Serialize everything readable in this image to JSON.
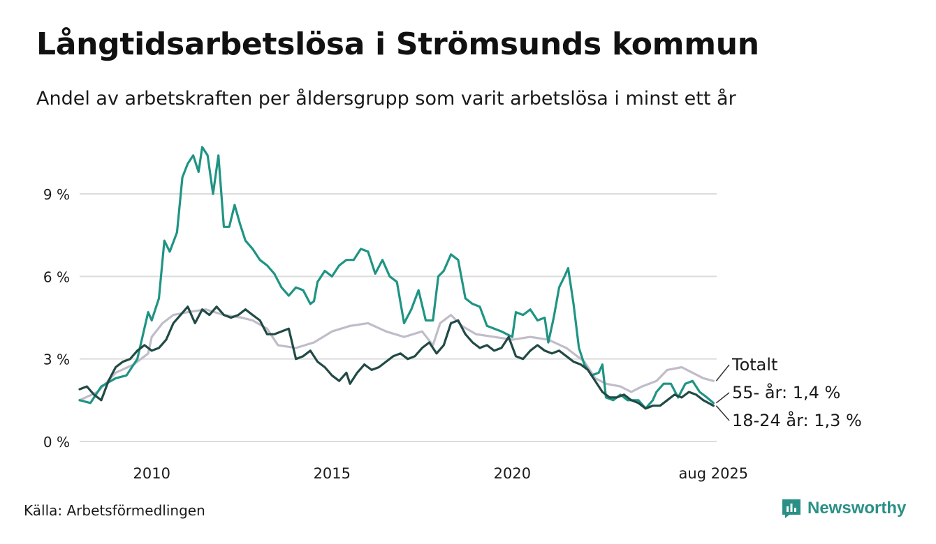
{
  "header": {
    "title": "Långtidsarbetslösa i Strömsunds kommun",
    "subtitle": "Andel av arbetskraften per åldersgrupp som varit arbetslösa i minst ett år"
  },
  "footer": {
    "source": "Källa: Arbetsförmedlingen",
    "brand": "Newsworthy",
    "brand_icon": "newsworthy-logo-icon"
  },
  "chart_data": {
    "type": "line",
    "title": "",
    "xlabel": "",
    "ylabel": "",
    "xlim": [
      2008.0,
      2025.67
    ],
    "ylim": [
      0,
      11
    ],
    "yticks": [
      0,
      3,
      6,
      9
    ],
    "ytick_labels": [
      "0 %",
      "3 %",
      "6 %",
      "9 %"
    ],
    "xticks": [
      2010,
      2015,
      2020,
      2025.58
    ],
    "xtick_labels": [
      "2010",
      "2015",
      "2020",
      "aug 2025"
    ],
    "grid": true,
    "legend": "direct labels at line ends (right)",
    "series": [
      {
        "name": "Totalt",
        "end_label": "Totalt",
        "color": "#c0bcc9",
        "points": [
          [
            2008.0,
            1.5
          ],
          [
            2008.5,
            1.8
          ],
          [
            2009.0,
            2.5
          ],
          [
            2009.5,
            2.8
          ],
          [
            2009.9,
            3.2
          ],
          [
            2010.0,
            3.8
          ],
          [
            2010.3,
            4.3
          ],
          [
            2010.6,
            4.6
          ],
          [
            2011.0,
            4.7
          ],
          [
            2011.5,
            4.8
          ],
          [
            2012.0,
            4.6
          ],
          [
            2012.5,
            4.5
          ],
          [
            2012.8,
            4.4
          ],
          [
            2013.2,
            4.1
          ],
          [
            2013.5,
            3.5
          ],
          [
            2014.0,
            3.4
          ],
          [
            2014.5,
            3.6
          ],
          [
            2015.0,
            4.0
          ],
          [
            2015.5,
            4.2
          ],
          [
            2016.0,
            4.3
          ],
          [
            2016.5,
            4.0
          ],
          [
            2017.0,
            3.8
          ],
          [
            2017.5,
            4.0
          ],
          [
            2017.8,
            3.5
          ],
          [
            2018.0,
            4.3
          ],
          [
            2018.3,
            4.6
          ],
          [
            2018.6,
            4.2
          ],
          [
            2019.0,
            3.9
          ],
          [
            2019.5,
            3.8
          ],
          [
            2020.0,
            3.7
          ],
          [
            2020.5,
            3.8
          ],
          [
            2021.0,
            3.7
          ],
          [
            2021.5,
            3.4
          ],
          [
            2022.0,
            2.9
          ],
          [
            2022.3,
            2.3
          ],
          [
            2022.6,
            2.1
          ],
          [
            2023.0,
            2.0
          ],
          [
            2023.3,
            1.8
          ],
          [
            2023.6,
            2.0
          ],
          [
            2024.0,
            2.2
          ],
          [
            2024.3,
            2.6
          ],
          [
            2024.7,
            2.7
          ],
          [
            2025.0,
            2.5
          ],
          [
            2025.3,
            2.3
          ],
          [
            2025.58,
            2.2
          ]
        ]
      },
      {
        "name": "55- år",
        "end_label": "55- år: 1,4 %",
        "color": "#1f9484",
        "points": [
          [
            2008.0,
            1.5
          ],
          [
            2008.3,
            1.4
          ],
          [
            2008.6,
            2.0
          ],
          [
            2009.0,
            2.3
          ],
          [
            2009.3,
            2.4
          ],
          [
            2009.6,
            3.0
          ],
          [
            2009.9,
            4.7
          ],
          [
            2010.0,
            4.4
          ],
          [
            2010.2,
            5.2
          ],
          [
            2010.35,
            7.3
          ],
          [
            2010.5,
            6.9
          ],
          [
            2010.7,
            7.6
          ],
          [
            2010.85,
            9.6
          ],
          [
            2011.0,
            10.1
          ],
          [
            2011.15,
            10.4
          ],
          [
            2011.3,
            9.8
          ],
          [
            2011.4,
            10.7
          ],
          [
            2011.55,
            10.4
          ],
          [
            2011.7,
            9.0
          ],
          [
            2011.85,
            10.4
          ],
          [
            2012.0,
            7.8
          ],
          [
            2012.15,
            7.8
          ],
          [
            2012.3,
            8.6
          ],
          [
            2012.45,
            7.9
          ],
          [
            2012.6,
            7.3
          ],
          [
            2012.8,
            7.0
          ],
          [
            2013.0,
            6.6
          ],
          [
            2013.2,
            6.4
          ],
          [
            2013.4,
            6.1
          ],
          [
            2013.6,
            5.6
          ],
          [
            2013.8,
            5.3
          ],
          [
            2014.0,
            5.6
          ],
          [
            2014.2,
            5.5
          ],
          [
            2014.4,
            5.0
          ],
          [
            2014.5,
            5.1
          ],
          [
            2014.6,
            5.8
          ],
          [
            2014.8,
            6.2
          ],
          [
            2015.0,
            6.0
          ],
          [
            2015.2,
            6.4
          ],
          [
            2015.4,
            6.6
          ],
          [
            2015.6,
            6.6
          ],
          [
            2015.8,
            7.0
          ],
          [
            2016.0,
            6.9
          ],
          [
            2016.2,
            6.1
          ],
          [
            2016.4,
            6.6
          ],
          [
            2016.6,
            6.0
          ],
          [
            2016.8,
            5.8
          ],
          [
            2017.0,
            4.3
          ],
          [
            2017.2,
            4.8
          ],
          [
            2017.4,
            5.5
          ],
          [
            2017.6,
            4.4
          ],
          [
            2017.8,
            4.4
          ],
          [
            2017.95,
            6.0
          ],
          [
            2018.1,
            6.2
          ],
          [
            2018.3,
            6.8
          ],
          [
            2018.5,
            6.6
          ],
          [
            2018.7,
            5.2
          ],
          [
            2018.9,
            5.0
          ],
          [
            2019.1,
            4.9
          ],
          [
            2019.3,
            4.2
          ],
          [
            2019.5,
            4.1
          ],
          [
            2019.7,
            4.0
          ],
          [
            2019.85,
            3.9
          ],
          [
            2020.0,
            3.8
          ],
          [
            2020.1,
            4.7
          ],
          [
            2020.3,
            4.6
          ],
          [
            2020.5,
            4.8
          ],
          [
            2020.7,
            4.4
          ],
          [
            2020.9,
            4.5
          ],
          [
            2021.0,
            3.6
          ],
          [
            2021.15,
            4.5
          ],
          [
            2021.3,
            5.6
          ],
          [
            2021.45,
            6.0
          ],
          [
            2021.55,
            6.3
          ],
          [
            2021.7,
            5.0
          ],
          [
            2021.85,
            3.4
          ],
          [
            2022.0,
            2.8
          ],
          [
            2022.2,
            2.4
          ],
          [
            2022.4,
            2.5
          ],
          [
            2022.5,
            2.8
          ],
          [
            2022.6,
            1.6
          ],
          [
            2022.8,
            1.5
          ],
          [
            2023.0,
            1.7
          ],
          [
            2023.2,
            1.5
          ],
          [
            2023.5,
            1.5
          ],
          [
            2023.7,
            1.2
          ],
          [
            2023.9,
            1.5
          ],
          [
            2024.0,
            1.8
          ],
          [
            2024.2,
            2.1
          ],
          [
            2024.4,
            2.1
          ],
          [
            2024.6,
            1.6
          ],
          [
            2024.8,
            2.1
          ],
          [
            2025.0,
            2.2
          ],
          [
            2025.2,
            1.8
          ],
          [
            2025.4,
            1.6
          ],
          [
            2025.58,
            1.4
          ]
        ]
      },
      {
        "name": "18-24 år",
        "end_label": "18-24 år: 1,3 %",
        "color": "#214a45",
        "points": [
          [
            2008.0,
            1.9
          ],
          [
            2008.2,
            2.0
          ],
          [
            2008.4,
            1.7
          ],
          [
            2008.6,
            1.5
          ],
          [
            2008.8,
            2.2
          ],
          [
            2009.0,
            2.7
          ],
          [
            2009.2,
            2.9
          ],
          [
            2009.4,
            3.0
          ],
          [
            2009.6,
            3.3
          ],
          [
            2009.8,
            3.5
          ],
          [
            2010.0,
            3.3
          ],
          [
            2010.2,
            3.4
          ],
          [
            2010.4,
            3.7
          ],
          [
            2010.6,
            4.3
          ],
          [
            2010.8,
            4.6
          ],
          [
            2011.0,
            4.9
          ],
          [
            2011.2,
            4.3
          ],
          [
            2011.4,
            4.8
          ],
          [
            2011.6,
            4.6
          ],
          [
            2011.8,
            4.9
          ],
          [
            2012.0,
            4.6
          ],
          [
            2012.2,
            4.5
          ],
          [
            2012.4,
            4.6
          ],
          [
            2012.6,
            4.8
          ],
          [
            2012.8,
            4.6
          ],
          [
            2013.0,
            4.4
          ],
          [
            2013.2,
            3.9
          ],
          [
            2013.4,
            3.9
          ],
          [
            2013.6,
            4.0
          ],
          [
            2013.8,
            4.1
          ],
          [
            2014.0,
            3.0
          ],
          [
            2014.2,
            3.1
          ],
          [
            2014.4,
            3.3
          ],
          [
            2014.6,
            2.9
          ],
          [
            2014.8,
            2.7
          ],
          [
            2015.0,
            2.4
          ],
          [
            2015.2,
            2.2
          ],
          [
            2015.4,
            2.5
          ],
          [
            2015.5,
            2.1
          ],
          [
            2015.7,
            2.5
          ],
          [
            2015.9,
            2.8
          ],
          [
            2016.1,
            2.6
          ],
          [
            2016.3,
            2.7
          ],
          [
            2016.5,
            2.9
          ],
          [
            2016.7,
            3.1
          ],
          [
            2016.9,
            3.2
          ],
          [
            2017.1,
            3.0
          ],
          [
            2017.3,
            3.1
          ],
          [
            2017.5,
            3.4
          ],
          [
            2017.7,
            3.6
          ],
          [
            2017.9,
            3.2
          ],
          [
            2018.1,
            3.5
          ],
          [
            2018.3,
            4.3
          ],
          [
            2018.5,
            4.4
          ],
          [
            2018.7,
            3.9
          ],
          [
            2018.9,
            3.6
          ],
          [
            2019.1,
            3.4
          ],
          [
            2019.3,
            3.5
          ],
          [
            2019.5,
            3.3
          ],
          [
            2019.7,
            3.4
          ],
          [
            2019.9,
            3.8
          ],
          [
            2020.1,
            3.1
          ],
          [
            2020.3,
            3.0
          ],
          [
            2020.5,
            3.3
          ],
          [
            2020.7,
            3.5
          ],
          [
            2020.9,
            3.3
          ],
          [
            2021.1,
            3.2
          ],
          [
            2021.3,
            3.3
          ],
          [
            2021.5,
            3.1
          ],
          [
            2021.7,
            2.9
          ],
          [
            2021.9,
            2.8
          ],
          [
            2022.1,
            2.6
          ],
          [
            2022.3,
            2.2
          ],
          [
            2022.5,
            1.8
          ],
          [
            2022.7,
            1.6
          ],
          [
            2022.9,
            1.6
          ],
          [
            2023.1,
            1.7
          ],
          [
            2023.3,
            1.5
          ],
          [
            2023.5,
            1.4
          ],
          [
            2023.7,
            1.2
          ],
          [
            2023.9,
            1.3
          ],
          [
            2024.1,
            1.3
          ],
          [
            2024.3,
            1.5
          ],
          [
            2024.5,
            1.7
          ],
          [
            2024.7,
            1.6
          ],
          [
            2024.9,
            1.8
          ],
          [
            2025.1,
            1.7
          ],
          [
            2025.3,
            1.5
          ],
          [
            2025.58,
            1.3
          ]
        ]
      }
    ]
  }
}
